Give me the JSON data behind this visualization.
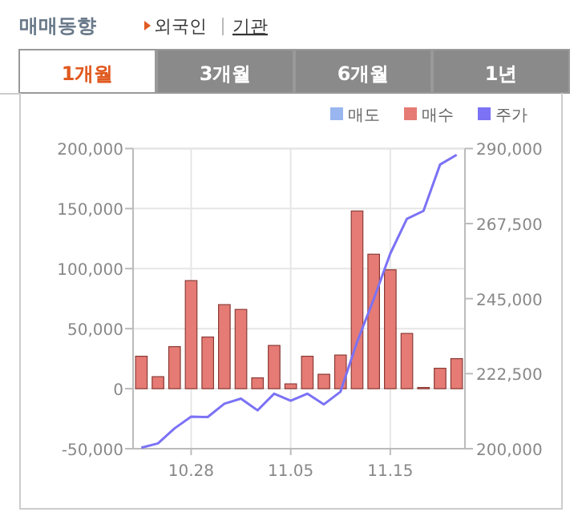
{
  "chart_data": {
    "type": "bar",
    "title": "매매동향",
    "annotations": [
      "외국인",
      "기관",
      "1개월",
      "3개월",
      "6개월",
      "1년"
    ],
    "categories": [
      null,
      null,
      null,
      "10.28",
      null,
      null,
      null,
      null,
      null,
      "11.05",
      null,
      null,
      null,
      null,
      null,
      "11.15",
      null,
      null,
      null,
      null
    ],
    "series": [
      {
        "name": "매도",
        "color": "#9ab6f0",
        "values": [
          null,
          null,
          null,
          null,
          null,
          null,
          null,
          null,
          null,
          null,
          null,
          null,
          null,
          null,
          null,
          null,
          null,
          null,
          null,
          null
        ]
      },
      {
        "name": "매수",
        "color": "#e57b74",
        "values": [
          27000,
          10000,
          35000,
          90000,
          43000,
          70000,
          66000,
          9000,
          36000,
          4000,
          27000,
          12000,
          28000,
          148000,
          112000,
          99000,
          46000,
          1000,
          17000,
          25000
        ]
      },
      {
        "name": "주가",
        "type": "line",
        "axis": "y2",
        "color": "#7b72f5",
        "values": [
          200300,
          201600,
          206100,
          209600,
          209500,
          213500,
          215000,
          211500,
          216500,
          214400,
          216500,
          213300,
          217100,
          232000,
          244800,
          258500,
          268900,
          271300,
          285200,
          288100
        ]
      }
    ],
    "ylim": [
      -50000,
      200000
    ],
    "yticks": [
      {
        "value": -50000,
        "label": "-50,000"
      },
      {
        "value": 0,
        "label": "0"
      },
      {
        "value": 50000,
        "label": "50,000"
      },
      {
        "value": 100000,
        "label": "100,000"
      },
      {
        "value": 150000,
        "label": "150,000"
      },
      {
        "value": 200000,
        "label": "200,000"
      }
    ],
    "y2lim": [
      200000,
      290000
    ],
    "y2ticks": [
      {
        "value": 200000,
        "label": "200,000"
      },
      {
        "value": 222500,
        "label": "222,500"
      },
      {
        "value": 245000,
        "label": "245,000"
      },
      {
        "value": 267500,
        "label": "267,500"
      },
      {
        "value": 290000,
        "label": "290,000"
      }
    ],
    "grid": true,
    "legend": "top right",
    "marker": "none"
  }
}
